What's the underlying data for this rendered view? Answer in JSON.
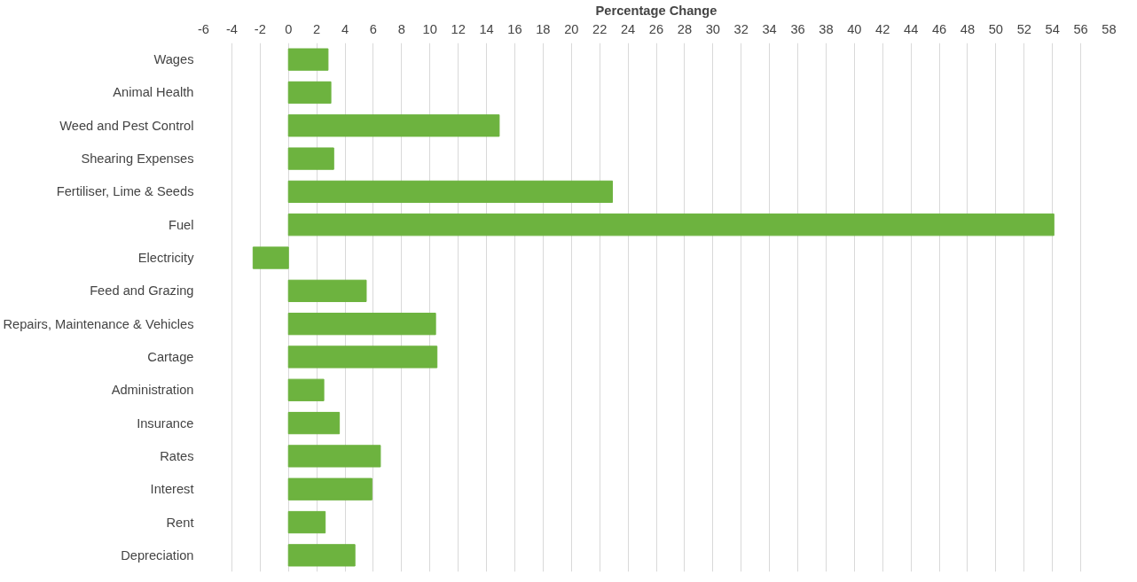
{
  "chart_data": {
    "type": "bar",
    "orientation": "horizontal",
    "xlabel": "Percentage Change",
    "categories": [
      "Wages",
      "Animal Health",
      "Weed and Pest Control",
      "Shearing Expenses",
      "Fertiliser, Lime & Seeds",
      "Fuel",
      "Electricity",
      "Feed and Grazing",
      "Repairs, Maintenance & Vehicles",
      "Cartage",
      "Administration",
      "Insurance",
      "Rates",
      "Interest",
      "Rent",
      "Depreciation"
    ],
    "values": [
      2.8,
      3.0,
      14.9,
      3.2,
      22.9,
      54.1,
      -2.5,
      5.5,
      10.4,
      10.5,
      2.5,
      3.6,
      6.5,
      5.9,
      2.6,
      4.7
    ],
    "color": "#6db33f",
    "xlim": [
      -6,
      58
    ],
    "xticks": [
      -6,
      -4,
      -2,
      0,
      2,
      4,
      6,
      8,
      10,
      12,
      14,
      16,
      18,
      20,
      22,
      24,
      26,
      28,
      30,
      32,
      34,
      36,
      38,
      40,
      42,
      44,
      46,
      48,
      50,
      52,
      54,
      56,
      58
    ],
    "grid": "x"
  }
}
